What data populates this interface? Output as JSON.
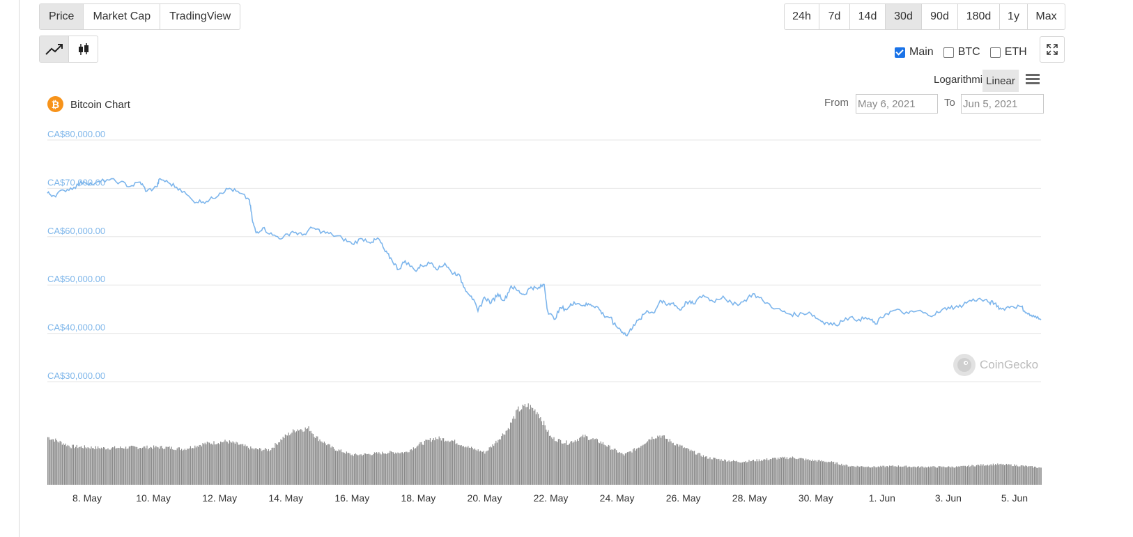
{
  "tabs": {
    "type": [
      "Price",
      "Market Cap",
      "TradingView"
    ],
    "active_type": "Price",
    "ranges": [
      "24h",
      "7d",
      "14d",
      "30d",
      "90d",
      "180d",
      "1y",
      "Max"
    ],
    "active_range": "30d"
  },
  "chart_style": {
    "line_icon": "line-chart-icon",
    "candle_icon": "candlestick-icon",
    "active": "line"
  },
  "toggles": {
    "main": "Main",
    "main_checked": true,
    "btc": "BTC",
    "btc_checked": false,
    "eth": "ETH",
    "eth_checked": false
  },
  "expand_icon": "expand-icon",
  "scale": {
    "log": "Logarithmic",
    "linear": "Linear",
    "active": "Linear"
  },
  "menu_icon": "hamburger-menu-icon",
  "chart_title": "Bitcoin Chart",
  "coin_icon": "bitcoin-icon",
  "range": {
    "from_label": "From",
    "from_value": "May 6, 2021",
    "to_label": "To",
    "to_value": "Jun 5, 2021"
  },
  "watermark": "CoinGecko",
  "colors": {
    "line": "#7cb5ec",
    "volume": "#8a8a8a",
    "grid": "#e6e6e6",
    "coin": "#f7931a"
  },
  "chart_data": {
    "type": "line",
    "title": "Bitcoin Chart",
    "y_ticks": [
      "CA$80,000.00",
      "CA$70,000.00",
      "CA$60,000.00",
      "CA$50,000.00",
      "CA$40,000.00",
      "CA$30,000.00"
    ],
    "ylim": [
      30000,
      80000
    ],
    "x_ticks": [
      "8. May",
      "10. May",
      "12. May",
      "14. May",
      "16. May",
      "18. May",
      "20. May",
      "22. May",
      "24. May",
      "26. May",
      "28. May",
      "30. May",
      "1. Jun",
      "3. Jun",
      "5. Jun"
    ],
    "x_tick_days": [
      2,
      4,
      6,
      8,
      10,
      12,
      14,
      16,
      18,
      20,
      22,
      24,
      26,
      28,
      30
    ],
    "x_range_days": [
      0.8,
      30.8
    ],
    "price": [
      [
        0.8,
        69000
      ],
      [
        1.0,
        68500
      ],
      [
        1.3,
        69600
      ],
      [
        1.6,
        70200
      ],
      [
        1.9,
        71400
      ],
      [
        2.2,
        70800
      ],
      [
        2.6,
        71800
      ],
      [
        3.0,
        71300
      ],
      [
        3.3,
        70400
      ],
      [
        3.6,
        71300
      ],
      [
        3.8,
        69400
      ],
      [
        4.1,
        70300
      ],
      [
        4.2,
        72000
      ],
      [
        4.5,
        71000
      ],
      [
        4.8,
        69900
      ],
      [
        5.2,
        67400
      ],
      [
        5.5,
        67200
      ],
      [
        5.8,
        67900
      ],
      [
        6.0,
        69000
      ],
      [
        6.3,
        70000
      ],
      [
        6.6,
        69000
      ],
      [
        6.9,
        67600
      ],
      [
        7.0,
        63000
      ],
      [
        7.1,
        60800
      ],
      [
        7.3,
        61800
      ],
      [
        7.6,
        60300
      ],
      [
        7.9,
        59700
      ],
      [
        8.2,
        61100
      ],
      [
        8.5,
        60300
      ],
      [
        8.8,
        61800
      ],
      [
        9.1,
        61000
      ],
      [
        9.4,
        60400
      ],
      [
        9.7,
        59700
      ],
      [
        10.0,
        58500
      ],
      [
        10.3,
        59600
      ],
      [
        10.6,
        58900
      ],
      [
        10.8,
        59600
      ],
      [
        11.0,
        56900
      ],
      [
        11.2,
        55200
      ],
      [
        11.4,
        53200
      ],
      [
        11.6,
        55000
      ],
      [
        11.9,
        53000
      ],
      [
        12.1,
        54000
      ],
      [
        12.4,
        54600
      ],
      [
        12.6,
        53300
      ],
      [
        12.8,
        54500
      ],
      [
        13.0,
        52600
      ],
      [
        13.2,
        52300
      ],
      [
        13.4,
        49400
      ],
      [
        13.6,
        47700
      ],
      [
        13.8,
        44600
      ],
      [
        14.0,
        47500
      ],
      [
        14.2,
        46300
      ],
      [
        14.4,
        48200
      ],
      [
        14.6,
        46800
      ],
      [
        14.8,
        49800
      ],
      [
        15.0,
        48800
      ],
      [
        15.2,
        48000
      ],
      [
        15.4,
        49600
      ],
      [
        15.6,
        49200
      ],
      [
        15.8,
        50100
      ],
      [
        15.9,
        44700
      ],
      [
        16.1,
        42900
      ],
      [
        16.3,
        45300
      ],
      [
        16.5,
        45000
      ],
      [
        16.7,
        46500
      ],
      [
        17.0,
        45800
      ],
      [
        17.2,
        46000
      ],
      [
        17.4,
        45500
      ],
      [
        17.6,
        43700
      ],
      [
        17.8,
        43300
      ],
      [
        17.9,
        41900
      ],
      [
        18.1,
        40800
      ],
      [
        18.3,
        39500
      ],
      [
        18.5,
        41800
      ],
      [
        18.7,
        42900
      ],
      [
        18.9,
        44700
      ],
      [
        19.1,
        44200
      ],
      [
        19.3,
        46800
      ],
      [
        19.5,
        45800
      ],
      [
        19.7,
        46300
      ],
      [
        19.9,
        44800
      ],
      [
        20.1,
        46500
      ],
      [
        20.3,
        46100
      ],
      [
        20.6,
        47900
      ],
      [
        20.9,
        46600
      ],
      [
        21.2,
        47700
      ],
      [
        21.5,
        45900
      ],
      [
        21.8,
        46500
      ],
      [
        22.1,
        48200
      ],
      [
        22.4,
        46800
      ],
      [
        22.8,
        45100
      ],
      [
        23.1,
        44200
      ],
      [
        23.4,
        43800
      ],
      [
        23.8,
        44400
      ],
      [
        24.1,
        42800
      ],
      [
        24.3,
        42200
      ],
      [
        24.6,
        41700
      ],
      [
        24.9,
        43200
      ],
      [
        25.3,
        42900
      ],
      [
        25.6,
        43100
      ],
      [
        25.8,
        41900
      ],
      [
        26.1,
        44000
      ],
      [
        26.4,
        44800
      ],
      [
        26.8,
        44100
      ],
      [
        27.1,
        44700
      ],
      [
        27.4,
        43700
      ],
      [
        27.7,
        44300
      ],
      [
        28.0,
        45400
      ],
      [
        28.3,
        45400
      ],
      [
        28.6,
        46600
      ],
      [
        28.9,
        47100
      ],
      [
        29.2,
        46500
      ],
      [
        29.4,
        46200
      ],
      [
        29.6,
        45000
      ],
      [
        29.9,
        45600
      ],
      [
        30.2,
        45500
      ],
      [
        30.4,
        44000
      ],
      [
        30.6,
        43400
      ],
      [
        30.8,
        42800
      ]
    ],
    "volume_relative": [
      [
        0.8,
        0.56
      ],
      [
        1.5,
        0.45
      ],
      [
        2.5,
        0.43
      ],
      [
        3.5,
        0.44
      ],
      [
        4.3,
        0.44
      ],
      [
        4.9,
        0.42
      ],
      [
        5.5,
        0.48
      ],
      [
        6.2,
        0.51
      ],
      [
        6.6,
        0.47
      ],
      [
        7.0,
        0.42
      ],
      [
        7.5,
        0.41
      ],
      [
        7.9,
        0.55
      ],
      [
        8.3,
        0.65
      ],
      [
        8.7,
        0.66
      ],
      [
        8.9,
        0.56
      ],
      [
        9.4,
        0.43
      ],
      [
        10.0,
        0.35
      ],
      [
        10.5,
        0.36
      ],
      [
        11.1,
        0.38
      ],
      [
        11.6,
        0.38
      ],
      [
        12.0,
        0.47
      ],
      [
        12.5,
        0.55
      ],
      [
        13.0,
        0.52
      ],
      [
        13.5,
        0.44
      ],
      [
        14.0,
        0.38
      ],
      [
        14.3,
        0.49
      ],
      [
        14.7,
        0.66
      ],
      [
        15.0,
        0.88
      ],
      [
        15.3,
        0.93
      ],
      [
        15.6,
        0.85
      ],
      [
        16.0,
        0.55
      ],
      [
        16.5,
        0.49
      ],
      [
        17.0,
        0.57
      ],
      [
        17.5,
        0.5
      ],
      [
        17.9,
        0.41
      ],
      [
        18.2,
        0.35
      ],
      [
        18.6,
        0.43
      ],
      [
        19.0,
        0.55
      ],
      [
        19.3,
        0.58
      ],
      [
        19.7,
        0.49
      ],
      [
        20.2,
        0.4
      ],
      [
        20.7,
        0.32
      ],
      [
        21.2,
        0.29
      ],
      [
        21.7,
        0.27
      ],
      [
        22.3,
        0.29
      ],
      [
        22.8,
        0.31
      ],
      [
        23.3,
        0.32
      ],
      [
        23.8,
        0.29
      ],
      [
        24.4,
        0.27
      ],
      [
        25.0,
        0.22
      ],
      [
        25.8,
        0.21
      ],
      [
        26.4,
        0.22
      ],
      [
        27.0,
        0.21
      ],
      [
        27.6,
        0.21
      ],
      [
        28.3,
        0.21
      ],
      [
        28.9,
        0.23
      ],
      [
        29.4,
        0.24
      ],
      [
        30.0,
        0.23
      ],
      [
        30.8,
        0.2
      ]
    ]
  }
}
